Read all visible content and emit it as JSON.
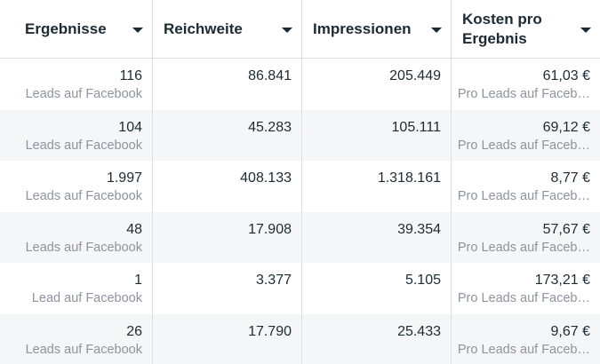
{
  "columns": [
    {
      "label": "Ergebnisse"
    },
    {
      "label": "Reichweite"
    },
    {
      "label": "Impressionen"
    },
    {
      "label": "Kosten pro Ergebnis"
    }
  ],
  "rows": [
    {
      "ergebnisse": "116",
      "ergebnisse_sub": "Leads auf Facebook",
      "reichweite": "86.841",
      "impressionen": "205.449",
      "kosten": "61,03 €",
      "kosten_sub": "Pro Leads auf Faceb…"
    },
    {
      "ergebnisse": "104",
      "ergebnisse_sub": "Leads auf Facebook",
      "reichweite": "45.283",
      "impressionen": "105.111",
      "kosten": "69,12 €",
      "kosten_sub": "Pro Leads auf Faceb…"
    },
    {
      "ergebnisse": "1.997",
      "ergebnisse_sub": "Leads auf Facebook",
      "reichweite": "408.133",
      "impressionen": "1.318.161",
      "kosten": "8,77 €",
      "kosten_sub": "Pro Leads auf Faceb…"
    },
    {
      "ergebnisse": "48",
      "ergebnisse_sub": "Leads auf Facebook",
      "reichweite": "17.908",
      "impressionen": "39.354",
      "kosten": "57,67 €",
      "kosten_sub": "Pro Leads auf Faceb…"
    },
    {
      "ergebnisse": "1",
      "ergebnisse_sub": "Lead auf Facebook",
      "reichweite": "3.377",
      "impressionen": "5.105",
      "kosten": "173,21 €",
      "kosten_sub": "Pro Leads auf Faceb…"
    },
    {
      "ergebnisse": "26",
      "ergebnisse_sub": "Leads auf Facebook",
      "reichweite": "17.790",
      "impressionen": "25.433",
      "kosten": "9,67 €",
      "kosten_sub": "Pro Leads auf Faceb…"
    }
  ]
}
